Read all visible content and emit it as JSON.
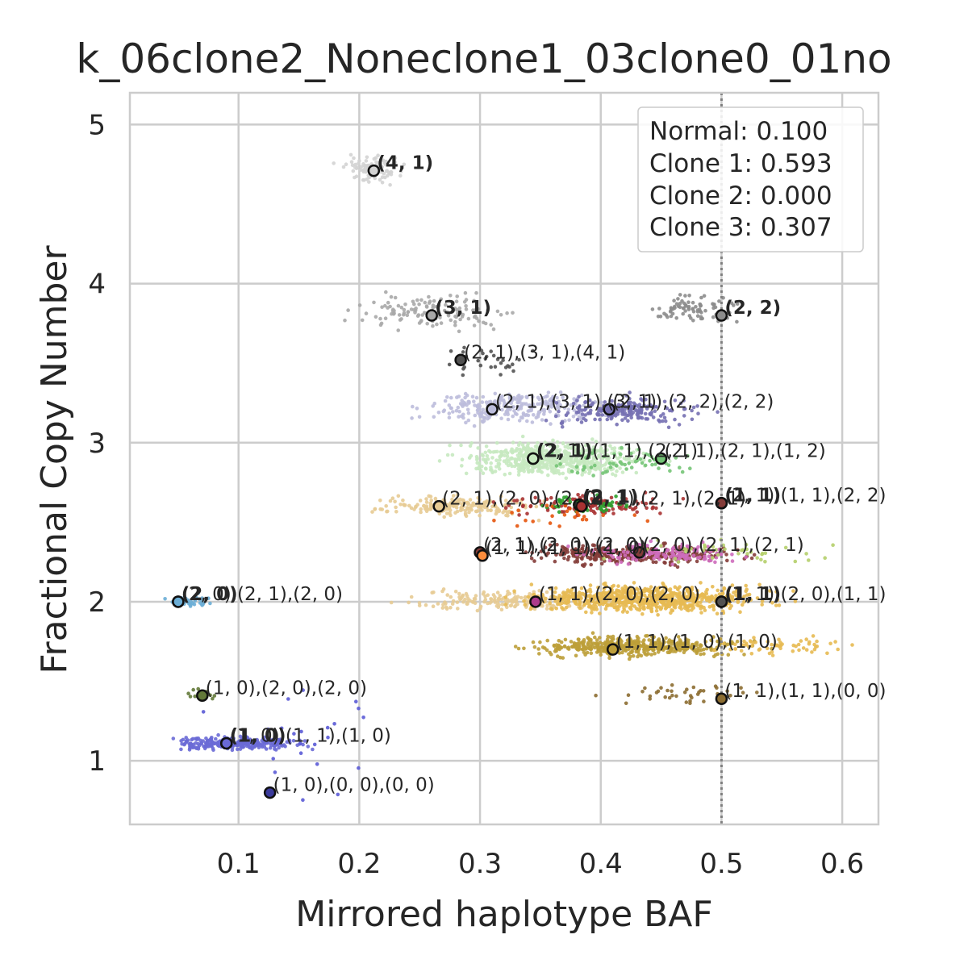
{
  "chart_data": {
    "type": "scatter",
    "title": "k_06clone2_Noneclone1_03clone0_01no",
    "xlabel": "Mirrored haplotype BAF",
    "ylabel": "Fractional Copy Number",
    "xlim": [
      0.01,
      0.63
    ],
    "ylim": [
      0.6,
      5.2
    ],
    "xticks": [
      {
        "value": 0.1,
        "label": "0.1"
      },
      {
        "value": 0.2,
        "label": "0.2"
      },
      {
        "value": 0.3,
        "label": "0.3"
      },
      {
        "value": 0.4,
        "label": "0.4"
      },
      {
        "value": 0.5,
        "label": "0.5"
      },
      {
        "value": 0.6,
        "label": "0.6"
      }
    ],
    "yticks": [
      {
        "value": 1,
        "label": "1"
      },
      {
        "value": 2,
        "label": "2"
      },
      {
        "value": 3,
        "label": "3"
      },
      {
        "value": 4,
        "label": "4"
      },
      {
        "value": 5,
        "label": "5"
      }
    ],
    "grid": true,
    "vline": {
      "x": 0.5,
      "style": "dotted",
      "color": "#808080"
    },
    "legend": {
      "placement": "top-right",
      "entries": [
        "Normal: 0.100",
        "Clone 1: 0.593",
        "Clone 2: 0.000",
        "Clone 3: 0.307"
      ]
    },
    "clusters": [
      {
        "x": 0.21,
        "y": 4.72,
        "sx": 0.012,
        "sy": 0.04,
        "n": 90,
        "color": "#d3d3d3"
      },
      {
        "x": 0.265,
        "y": 3.82,
        "sx": 0.03,
        "sy": 0.05,
        "n": 130,
        "color": "#a8a8a8"
      },
      {
        "x": 0.475,
        "y": 3.84,
        "sx": 0.018,
        "sy": 0.04,
        "n": 80,
        "color": "#8c8c8c"
      },
      {
        "x": 0.3,
        "y": 3.5,
        "sx": 0.018,
        "sy": 0.05,
        "n": 30,
        "color": "#525252"
      },
      {
        "x": 0.33,
        "y": 3.22,
        "sx": 0.035,
        "sy": 0.05,
        "n": 260,
        "color": "#bcbddc"
      },
      {
        "x": 0.42,
        "y": 3.2,
        "sx": 0.03,
        "sy": 0.04,
        "n": 200,
        "color": "#7570b3"
      },
      {
        "x": 0.36,
        "y": 2.9,
        "sx": 0.035,
        "sy": 0.05,
        "n": 600,
        "color": "#c7e9c0"
      },
      {
        "x": 0.42,
        "y": 2.88,
        "sx": 0.03,
        "sy": 0.04,
        "n": 60,
        "color": "#74c476"
      },
      {
        "x": 0.28,
        "y": 2.6,
        "sx": 0.03,
        "sy": 0.03,
        "n": 200,
        "color": "#e7cb94"
      },
      {
        "x": 0.39,
        "y": 2.61,
        "sx": 0.03,
        "sy": 0.03,
        "n": 120,
        "color": "#a83232"
      },
      {
        "x": 0.39,
        "y": 2.62,
        "sx": 0.02,
        "sy": 0.03,
        "n": 50,
        "color": "#2ca02c"
      },
      {
        "x": 0.37,
        "y": 2.55,
        "sx": 0.03,
        "sy": 0.05,
        "n": 25,
        "color": "#e6550d"
      },
      {
        "x": 0.43,
        "y": 2.3,
        "sx": 0.04,
        "sy": 0.03,
        "n": 320,
        "color": "#843c39"
      },
      {
        "x": 0.45,
        "y": 2.3,
        "sx": 0.03,
        "sy": 0.03,
        "n": 150,
        "color": "#ce6dbd"
      },
      {
        "x": 0.5,
        "y": 2.32,
        "sx": 0.04,
        "sy": 0.04,
        "n": 40,
        "color": "#b5cf6b"
      },
      {
        "x": 0.33,
        "y": 2.01,
        "sx": 0.04,
        "sy": 0.03,
        "n": 200,
        "color": "#e7cb94"
      },
      {
        "x": 0.44,
        "y": 2.02,
        "sx": 0.045,
        "sy": 0.04,
        "n": 700,
        "color": "#e7ba52"
      },
      {
        "x": 0.43,
        "y": 1.72,
        "sx": 0.04,
        "sy": 0.03,
        "n": 450,
        "color": "#bd9e39"
      },
      {
        "x": 0.55,
        "y": 1.72,
        "sx": 0.03,
        "sy": 0.03,
        "n": 60,
        "color": "#e7ba52"
      },
      {
        "x": 0.47,
        "y": 1.42,
        "sx": 0.03,
        "sy": 0.03,
        "n": 40,
        "color": "#8c6d31"
      },
      {
        "x": 0.06,
        "y": 2.0,
        "sx": 0.01,
        "sy": 0.02,
        "n": 40,
        "color": "#6baed6"
      },
      {
        "x": 0.07,
        "y": 1.42,
        "sx": 0.008,
        "sy": 0.02,
        "n": 15,
        "color": "#637939"
      },
      {
        "x": 0.1,
        "y": 1.11,
        "sx": 0.025,
        "sy": 0.02,
        "n": 280,
        "color": "#6a6ad6"
      },
      {
        "x": 0.16,
        "y": 1.1,
        "sx": 0.03,
        "sy": 0.15,
        "n": 25,
        "color": "#5b5bd6"
      }
    ],
    "centers": [
      {
        "x": 0.212,
        "y": 4.71,
        "fill": "#d3d3d3",
        "label": "(4, 1)",
        "bold": true
      },
      {
        "x": 0.26,
        "y": 3.8,
        "fill": "#a8a8a8",
        "label": "(3, 1)",
        "bold": true
      },
      {
        "x": 0.5,
        "y": 3.8,
        "fill": "#8c8c8c",
        "label": "(2, 2)",
        "bold": true
      },
      {
        "x": 0.284,
        "y": 3.52,
        "fill": "#525252",
        "label": "(2, 1),(3, 1),(4, 1)",
        "bold": false
      },
      {
        "x": 0.31,
        "y": 3.21,
        "fill": "#bcbddc",
        "label": "(2, 1),(3, 1),(3, 1)",
        "bold": false
      },
      {
        "x": 0.407,
        "y": 3.21,
        "fill": "#7570b3",
        "label": "(2, 1),(2, 2),(2, 2)",
        "bold": false
      },
      {
        "x": 0.344,
        "y": 2.9,
        "fill": "#c7e9c0",
        "label": "(2, 1)",
        "bold": true
      },
      {
        "x": 0.344,
        "y": 2.9,
        "fill": "#c7e9c0",
        "label": "(2, 1),(1, 1),(2, 1)",
        "bold": false
      },
      {
        "x": 0.45,
        "y": 2.9,
        "fill": "#74c476",
        "label": "(2, 1),(2, 1),(1, 2)",
        "bold": false
      },
      {
        "x": 0.266,
        "y": 2.6,
        "fill": "#e7cb94",
        "label": "(2, 1),(2, 0),(2, 0)",
        "bold": false
      },
      {
        "x": 0.382,
        "y": 2.61,
        "fill": "#2ca02c",
        "label": "(2, 1)",
        "bold": true
      },
      {
        "x": 0.384,
        "y": 2.6,
        "fill": "#a83232",
        "label": "(2, 1),(2, 1),(2, 1)",
        "bold": false
      },
      {
        "x": 0.5,
        "y": 2.62,
        "fill": "#843c39",
        "label": "(1, 1)",
        "bold": true
      },
      {
        "x": 0.5,
        "y": 2.62,
        "fill": "#843c39",
        "label": "(2, 1),(1, 1),(2, 2)",
        "bold": false
      },
      {
        "x": 0.3,
        "y": 2.31,
        "fill": "#843c39",
        "label": "(2, 1),(2, 0),(2, 0)",
        "bold": false
      },
      {
        "x": 0.302,
        "y": 2.29,
        "fill": "#fd8d3c",
        "label": "(1, 1),(1, 1),(1, 0)",
        "bold": false
      },
      {
        "x": 0.432,
        "y": 2.31,
        "fill": "#843c39",
        "label": "(2, 0),(2, 1),(2, 1)",
        "bold": false
      },
      {
        "x": 0.05,
        "y": 2.0,
        "fill": "#6baed6",
        "label": "(2, 0)",
        "bold": true
      },
      {
        "x": 0.05,
        "y": 2.0,
        "fill": "#6baed6",
        "label": "(2, 0),(2, 1),(2, 0)",
        "bold": false
      },
      {
        "x": 0.346,
        "y": 2.0,
        "fill": "#ad3c8c",
        "label": "(1, 1),(2, 0),(2, 0)",
        "bold": false
      },
      {
        "x": 0.5,
        "y": 2.0,
        "fill": "#525252",
        "label": "(1, 1)",
        "bold": true
      },
      {
        "x": 0.5,
        "y": 2.0,
        "fill": "#525252",
        "label": "(1, 1),(2, 0),(1, 1)",
        "bold": false
      },
      {
        "x": 0.41,
        "y": 1.7,
        "fill": "#bd9e39",
        "label": "(1, 1),(1, 0),(1, 0)",
        "bold": false
      },
      {
        "x": 0.07,
        "y": 1.41,
        "fill": "#637939",
        "label": "(1, 0),(2, 0),(2, 0)",
        "bold": false
      },
      {
        "x": 0.5,
        "y": 1.39,
        "fill": "#8c6d31",
        "label": "(1, 1),(1, 1),(0, 0)",
        "bold": false
      },
      {
        "x": 0.09,
        "y": 1.11,
        "fill": "#6a6ad6",
        "label": "(1, 0)",
        "bold": true
      },
      {
        "x": 0.09,
        "y": 1.11,
        "fill": "#6a6ad6",
        "label": "(1, 0),(1, 1),(1, 0)",
        "bold": false
      },
      {
        "x": 0.126,
        "y": 0.8,
        "fill": "#3b3b9c",
        "label": "(1, 0),(0, 0),(0, 0)",
        "bold": false
      }
    ]
  }
}
